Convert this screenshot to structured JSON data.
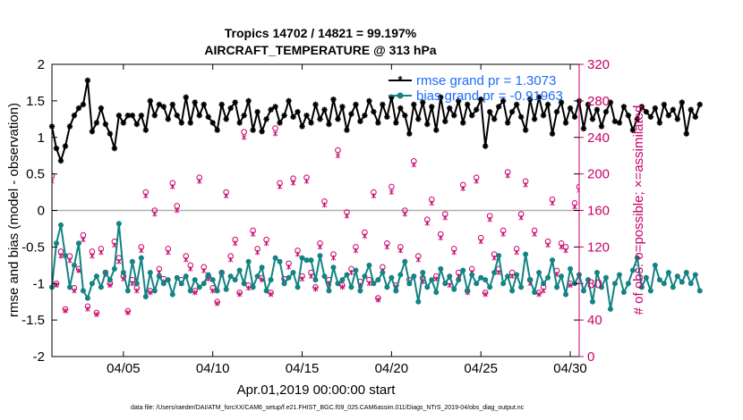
{
  "chart_data": {
    "type": "line",
    "title": "Tropics 14702 / 14821 = 99.197%",
    "subtitle": "AIRCRAFT_TEMPERATURE @ 313 hPa",
    "xlabel": "Apr.01,2019 00:00:00 start",
    "ylabel": "rmse and bias (model - observation)",
    "ylabel_right": "# of obs: o=possible; ×=assimilated",
    "footnote": "data file: /Users/raeder/DAI/ATM_forcXX/CAM6_setup/f.e21.FHIST_BGC.f09_025.CAM6assim.011/Diags_NTrS_2019-04/obs_diag_output.nc",
    "xlim": [
      1,
      30.5
    ],
    "ylim": [
      -2,
      2
    ],
    "ylim_right": [
      0,
      320
    ],
    "xticks": [
      5,
      10,
      15,
      20,
      25,
      30
    ],
    "xtick_labels": [
      "04/05",
      "04/10",
      "04/15",
      "04/20",
      "04/25",
      "04/30"
    ],
    "yticks": [
      -2,
      -1.5,
      -1,
      -0.5,
      0,
      0.5,
      1,
      1.5,
      2
    ],
    "ytick_labels": [
      "-2",
      "-1.5",
      "-1",
      "-0.5",
      "0",
      "0.5",
      "1",
      "1.5",
      "2"
    ],
    "yticks_right": [
      0,
      40,
      80,
      120,
      160,
      200,
      240,
      280,
      320
    ],
    "zero_line": 0,
    "grid": false,
    "legend_position": "top-right",
    "colors": {
      "rmse": "#000000",
      "bias": "#138383",
      "obs": "#c8006a",
      "legend_text": "#1d6bff",
      "zero": "#b0b0b0"
    },
    "series": [
      {
        "name": "rmse",
        "legend": "rmse grand pr = 1.3073",
        "start_day": 1.0,
        "step_days": 0.25,
        "values": [
          1.15,
          0.85,
          0.68,
          0.88,
          1.15,
          1.3,
          1.4,
          1.45,
          1.78,
          1.08,
          1.2,
          1.4,
          1.18,
          1.05,
          0.85,
          1.3,
          1.2,
          1.3,
          1.3,
          1.18,
          1.3,
          1.1,
          1.5,
          1.3,
          1.45,
          1.42,
          1.25,
          1.45,
          1.3,
          1.2,
          1.55,
          1.2,
          1.48,
          1.3,
          1.45,
          1.28,
          1.2,
          1.1,
          1.45,
          1.25,
          1.4,
          1.48,
          1.2,
          1.3,
          1.5,
          1.1,
          1.35,
          1.08,
          1.25,
          1.38,
          1.42,
          1.2,
          1.3,
          1.5,
          1.28,
          1.35,
          1.15,
          1.3,
          1.2,
          1.45,
          1.25,
          1.38,
          1.18,
          1.52,
          1.25,
          1.42,
          1.1,
          1.32,
          1.45,
          1.22,
          1.3,
          1.5,
          1.35,
          1.2,
          1.45,
          1.28,
          1.55,
          1.2,
          1.4,
          1.3,
          1.05,
          1.45,
          1.25,
          1.48,
          1.18,
          1.42,
          1.1,
          1.55,
          1.22,
          1.4,
          1.3,
          1.5,
          1.2,
          1.45,
          1.3,
          1.38,
          1.52,
          0.88,
          1.35,
          1.25,
          1.42,
          1.5,
          1.2,
          1.35,
          1.45,
          1.28,
          1.1,
          1.52,
          1.25,
          1.55,
          1.3,
          1.45,
          1.05,
          1.35,
          1.48,
          1.2,
          1.4,
          1.28,
          1.5,
          1.12,
          1.45,
          1.25,
          1.38,
          1.15,
          1.35,
          1.48,
          1.22,
          1.2,
          1.42,
          1.3,
          1.1,
          1.25,
          1.42,
          1.35,
          1.28,
          1.4,
          1.2,
          1.45,
          1.3,
          1.38,
          1.25,
          1.48,
          1.05,
          1.38,
          1.28,
          1.45
        ]
      },
      {
        "name": "bias",
        "legend": "bias grand pr = -0.91963",
        "start_day": 1.0,
        "step_days": 0.25,
        "values": [
          -1.05,
          -0.45,
          -0.2,
          -0.62,
          -1.05,
          -0.75,
          -0.45,
          -1.1,
          -1.2,
          -1.0,
          -0.9,
          -1.05,
          -0.85,
          -0.95,
          -0.8,
          -0.18,
          -0.85,
          -1.1,
          -0.7,
          -1.0,
          -0.65,
          -1.18,
          -0.85,
          -1.1,
          -0.9,
          -1.0,
          -0.95,
          -1.15,
          -0.92,
          -1.0,
          -0.9,
          -1.1,
          -0.95,
          -1.05,
          -1.0,
          -0.88,
          -0.95,
          -1.1,
          -0.85,
          -1.08,
          -0.9,
          -0.95,
          -0.82,
          -1.0,
          -0.7,
          -1.05,
          -0.9,
          -0.78,
          -1.1,
          -0.95,
          -0.65,
          -0.7,
          -1.0,
          -0.92,
          -0.85,
          -1.05,
          -0.65,
          -0.68,
          -0.68,
          -0.95,
          -0.62,
          -0.9,
          -1.1,
          -0.78,
          -1.0,
          -0.95,
          -0.88,
          -1.05,
          -0.82,
          -1.1,
          -0.9,
          -0.75,
          -1.0,
          -0.95,
          -0.85,
          -1.05,
          -0.92,
          -1.1,
          -0.88,
          -0.7,
          -1.0,
          -0.9,
          -1.25,
          -0.85,
          -1.05,
          -0.95,
          -1.12,
          -0.8,
          -1.0,
          -0.9,
          -1.08,
          -0.95,
          -0.82,
          -1.1,
          -0.88,
          -1.0,
          -0.92,
          -0.95,
          -1.05,
          -0.85,
          -0.62,
          -1.0,
          -0.9,
          -1.1,
          -0.88,
          -1.05,
          -0.6,
          -0.95,
          -1.12,
          -0.85,
          -1.0,
          -0.92,
          -0.68,
          -1.05,
          -0.9,
          -1.15,
          -0.8,
          -1.0,
          -0.88,
          -1.1,
          -0.95,
          -1.25,
          -0.85,
          -1.05,
          -0.92,
          -1.35,
          -1.0,
          -0.88,
          -1.12,
          -1.0,
          -0.82,
          -0.65,
          -1.05,
          -0.92,
          -1.1,
          -0.75,
          -0.95,
          -1.0,
          -0.85,
          -1.05,
          -0.9,
          -0.98,
          -0.85,
          -1.0,
          -0.88,
          -1.1
        ]
      },
      {
        "name": "obs_possible",
        "axis": "right",
        "marker": "circle",
        "start_day": 1.0,
        "step_days": 0.25,
        "values": [
          198,
          80,
          115,
          52,
          110,
          75,
          96,
          133,
          55,
          115,
          48,
          118,
          92,
          80,
          126,
          108,
          88,
          50,
          84,
          75,
          120,
          180,
          72,
          160,
          96,
          85,
          118,
          190,
          165,
          84,
          110,
          100,
          72,
          196,
          98,
          88,
          75,
          60,
          92,
          180,
          110,
          128,
          70,
          246,
          78,
          138,
          118,
          86,
          128,
          70,
          250,
          190,
          85,
          102,
          195,
          116,
          88,
          196,
          92,
          76,
          124,
          170,
          84,
          112,
          226,
          78,
          158,
          96,
          120,
          82,
          136,
          84,
          180,
          64,
          98,
          124,
          186,
          78,
          120,
          160,
          84,
          214,
          110,
          86,
          150,
          172,
          88,
          134,
          156,
          82,
          118,
          92,
          188,
          72,
          96,
          196,
          130,
          70,
          154,
          112,
          96,
          138,
          202,
          92,
          118,
          156,
          192,
          84,
          138,
          70,
          76,
          126,
          172,
          94,
          124,
          120,
          80,
          168,
          186,
          110,
          90,
          140,
          150,
          84,
          128,
          196,
          68,
          110,
          182,
          92,
          124,
          80,
          152,
          116,
          88,
          132,
          110,
          138,
          82,
          114,
          124,
          96,
          0,
          178
        ]
      },
      {
        "name": "obs_assimilated",
        "axis": "right",
        "marker": "asterisk",
        "start_day": 1.0,
        "step_days": 0.25,
        "values": [
          192,
          78,
          110,
          50,
          105,
          72,
          94,
          128,
          52,
          110,
          46,
          114,
          90,
          78,
          122,
          104,
          85,
          48,
          80,
          72,
          116,
          176,
          70,
          156,
          92,
          82,
          114,
          186,
          160,
          80,
          106,
          96,
          70,
          192,
          94,
          85,
          72,
          58,
          90,
          176,
          106,
          124,
          68,
          240,
          75,
          134,
          114,
          84,
          124,
          68,
          244,
          186,
          82,
          98,
          190,
          112,
          85,
          192,
          88,
          74,
          120,
          166,
          80,
          108,
          220,
          76,
          154,
          92,
          116,
          78,
          132,
          80,
          176,
          62,
          94,
          120,
          180,
          76,
          116,
          156,
          80,
          210,
          106,
          82,
          146,
          168,
          85,
          130,
          152,
          78,
          114,
          88,
          184,
          70,
          92,
          192,
          126,
          68,
          150,
          108,
          92,
          134,
          198,
          88,
          114,
          152,
          188,
          80,
          134,
          68,
          72,
          122,
          168,
          90,
          120,
          116,
          78,
          164,
          182,
          106,
          86,
          136,
          146,
          80,
          124,
          192,
          66,
          106,
          178,
          88,
          120,
          78,
          148,
          112,
          84,
          128,
          106,
          134,
          80,
          110,
          120,
          92,
          0,
          174
        ]
      }
    ]
  }
}
